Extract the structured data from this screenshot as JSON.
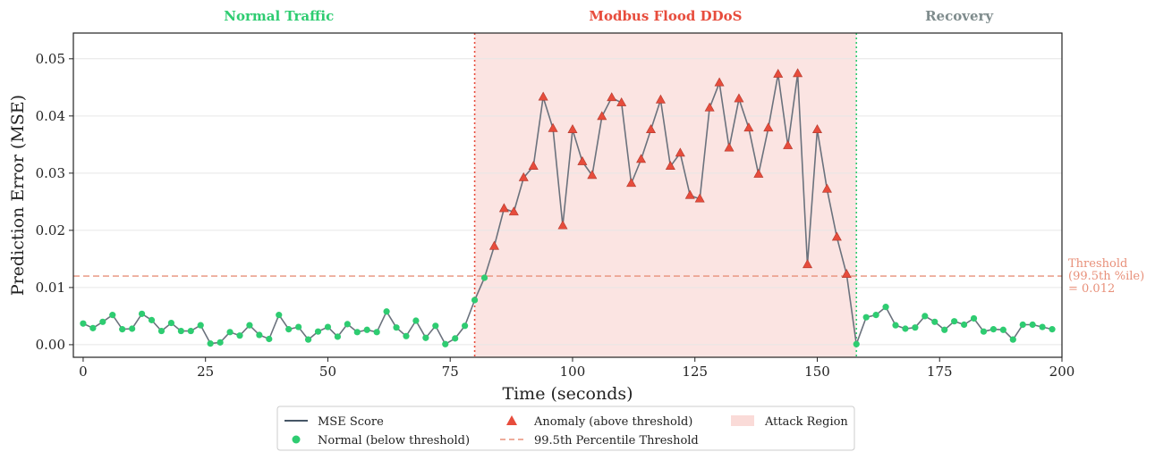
{
  "chart_data": {
    "type": "line",
    "title": "",
    "xlabel": "Time (seconds)",
    "ylabel": "Prediction Error (MSE)",
    "xlim": [
      -2,
      200
    ],
    "ylim": [
      -0.0022,
      0.0545
    ],
    "xticks": [
      0,
      25,
      50,
      75,
      100,
      125,
      150,
      175,
      200
    ],
    "yticks": [
      0.0,
      0.01,
      0.02,
      0.03,
      0.04,
      0.05
    ],
    "ytick_labels": [
      "0.00",
      "0.01",
      "0.02",
      "0.03",
      "0.04",
      "0.05"
    ],
    "grid": "y-horizontal",
    "threshold": 0.012,
    "threshold_label": [
      "Threshold",
      "(99.5th %ile)",
      "= 0.012"
    ],
    "attack_region": [
      80,
      158
    ],
    "region_labels": [
      {
        "text": "Normal Traffic",
        "x": 40,
        "color": "#2ecc71"
      },
      {
        "text": "Modbus Flood DDoS",
        "x": 119,
        "color": "#e74c3c"
      },
      {
        "text": "Recovery",
        "x": 179,
        "color": "#7f8c8d"
      }
    ],
    "x": [
      0,
      2,
      4,
      6,
      8,
      10,
      12,
      14,
      16,
      18,
      20,
      22,
      24,
      26,
      28,
      30,
      32,
      34,
      36,
      38,
      40,
      42,
      44,
      46,
      48,
      50,
      52,
      54,
      56,
      58,
      60,
      62,
      64,
      66,
      68,
      70,
      72,
      74,
      76,
      78,
      80,
      82,
      84,
      86,
      88,
      90,
      92,
      94,
      96,
      98,
      100,
      102,
      104,
      106,
      108,
      110,
      112,
      114,
      116,
      118,
      120,
      122,
      124,
      126,
      128,
      130,
      132,
      134,
      136,
      138,
      140,
      142,
      144,
      146,
      148,
      150,
      152,
      154,
      156,
      158,
      160,
      162,
      164,
      166,
      168,
      170,
      172,
      174,
      176,
      178,
      180,
      182,
      184,
      186,
      188,
      190,
      192,
      194,
      196,
      198
    ],
    "y": [
      0.0037,
      0.0029,
      0.004,
      0.0052,
      0.0027,
      0.0028,
      0.0054,
      0.0043,
      0.0024,
      0.0038,
      0.0024,
      0.0024,
      0.0034,
      0.0002,
      0.0004,
      0.0022,
      0.0016,
      0.0034,
      0.0017,
      0.001,
      0.0052,
      0.0027,
      0.0031,
      0.0009,
      0.0023,
      0.0031,
      0.0014,
      0.0036,
      0.0022,
      0.0026,
      0.0022,
      0.0058,
      0.003,
      0.0015,
      0.0042,
      0.0012,
      0.0033,
      0.0001,
      0.0011,
      0.0033,
      0.0078,
      0.0117,
      0.0172,
      0.0238,
      0.0232,
      0.0292,
      0.0312,
      0.0433,
      0.0378,
      0.0208,
      0.0376,
      0.032,
      0.0296,
      0.0399,
      0.0432,
      0.0423,
      0.0282,
      0.0324,
      0.0376,
      0.0428,
      0.0312,
      0.0335,
      0.0261,
      0.0255,
      0.0414,
      0.0458,
      0.0344,
      0.043,
      0.0379,
      0.0298,
      0.0379,
      0.0473,
      0.0348,
      0.0474,
      0.014,
      0.0376,
      0.0272,
      0.0188,
      0.0123,
      0.0001,
      0.0048,
      0.0052,
      0.0066,
      0.0034,
      0.0028,
      0.003,
      0.005,
      0.004,
      0.0026,
      0.0041,
      0.0035,
      0.0046,
      0.0023,
      0.0027,
      0.0026,
      0.0009,
      0.0035,
      0.0035,
      0.0031,
      0.0027
    ],
    "series": [
      {
        "name": "MSE Score",
        "color": "#2c3e50"
      },
      {
        "name": "Normal (below threshold)",
        "color": "#2ecc71"
      },
      {
        "name": "Anomaly (above threshold)",
        "color": "#e74c3c"
      },
      {
        "name": "99.5th Percentile Threshold",
        "color": "#e8907a"
      },
      {
        "name": "Attack Region",
        "color": "#fadbd8"
      }
    ],
    "legend_placement": "bottom-center"
  }
}
